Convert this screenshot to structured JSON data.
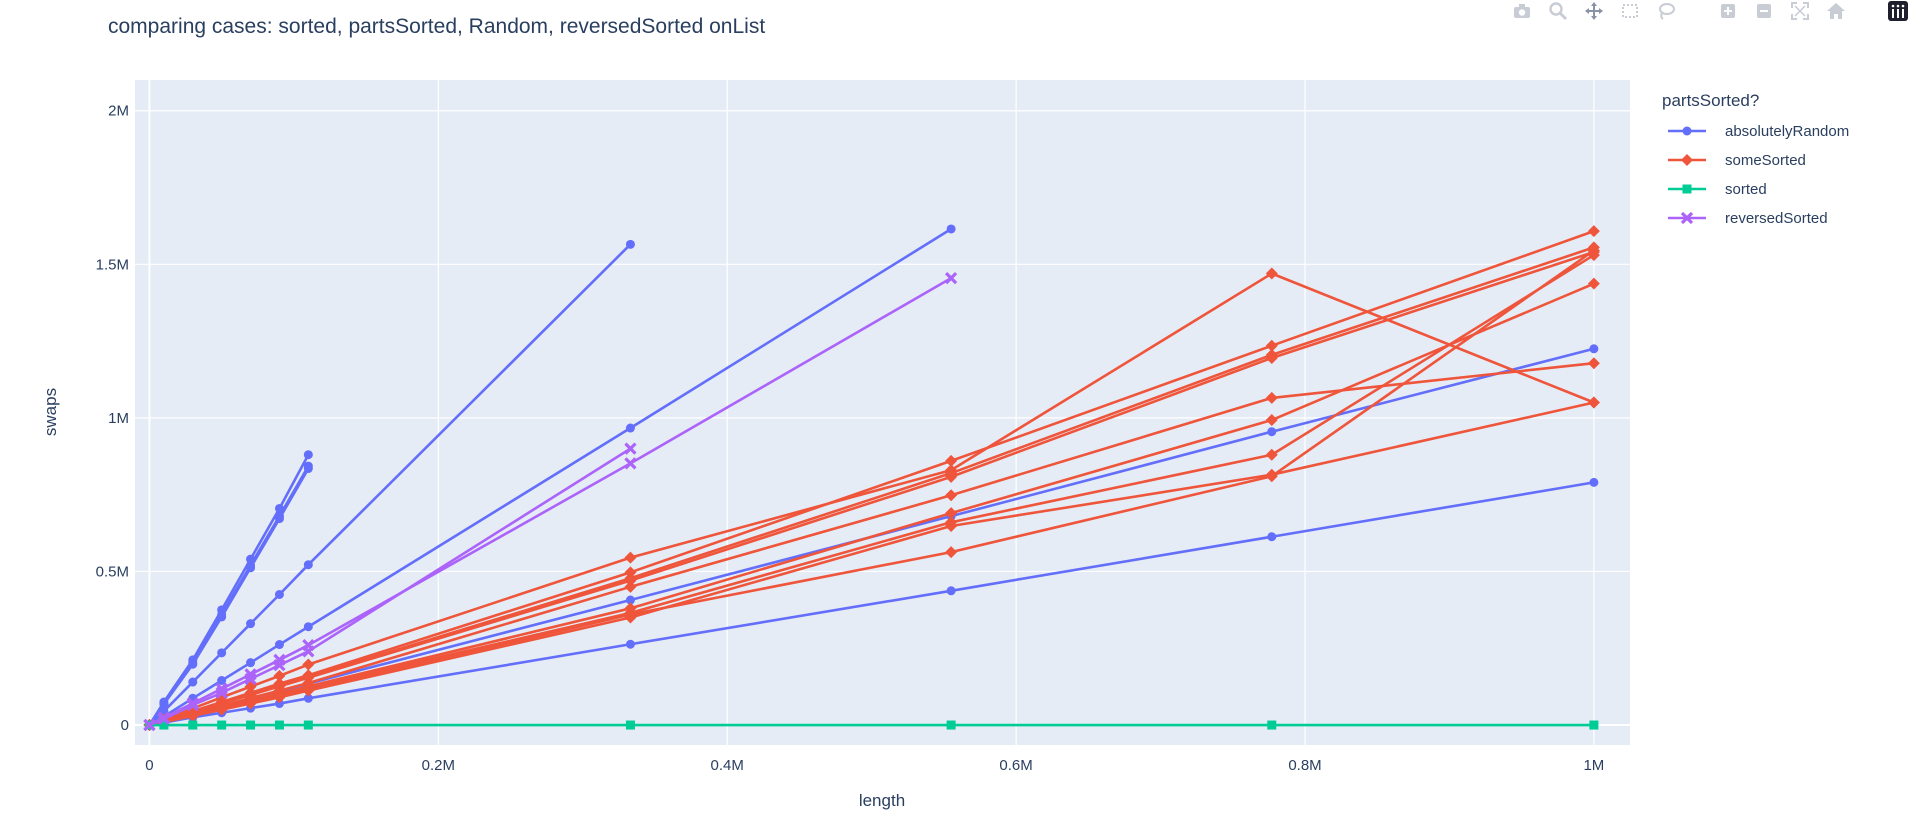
{
  "chart_data": {
    "type": "line",
    "title": "comparing cases: sorted, partsSorted, Random, reversedSorted onList",
    "xlabel": "length",
    "ylabel": "swaps",
    "xlim": [
      -10000,
      1025000
    ],
    "ylim": [
      -65000,
      2100000
    ],
    "x_ticks": [
      {
        "value": 0,
        "label": "0"
      },
      {
        "value": 200000,
        "label": "0.2M"
      },
      {
        "value": 400000,
        "label": "0.4M"
      },
      {
        "value": 600000,
        "label": "0.6M"
      },
      {
        "value": 800000,
        "label": "0.8M"
      },
      {
        "value": 1000000,
        "label": "1M"
      }
    ],
    "y_ticks": [
      {
        "value": 0,
        "label": "0"
      },
      {
        "value": 500000,
        "label": "0.5M"
      },
      {
        "value": 1000000,
        "label": "1M"
      },
      {
        "value": 1500000,
        "label": "1.5M"
      },
      {
        "value": 2000000,
        "label": "2M"
      }
    ],
    "grid": true,
    "legend": {
      "title": "partsSorted?",
      "position": "right",
      "entries": [
        {
          "name": "absolutelyRandom",
          "color": "#636efa",
          "marker": "circle"
        },
        {
          "name": "someSorted",
          "color": "#ef553b",
          "marker": "diamond"
        },
        {
          "name": "sorted",
          "color": "#00cc96",
          "marker": "square"
        },
        {
          "name": "reversedSorted",
          "color": "#ab63fa",
          "marker": "x"
        }
      ]
    },
    "series": [
      {
        "group": "absolutelyRandom",
        "x": [
          0,
          10000,
          30000,
          50000,
          70000,
          90000,
          110000
        ],
        "y": [
          0,
          75000,
          212000,
          375000,
          540000,
          705000,
          880000
        ]
      },
      {
        "group": "absolutelyRandom",
        "x": [
          0,
          10000,
          30000,
          50000,
          70000,
          90000,
          110000
        ],
        "y": [
          0,
          70000,
          203000,
          360000,
          520000,
          680000,
          843000
        ]
      },
      {
        "group": "absolutelyRandom",
        "x": [
          0,
          10000,
          30000,
          50000,
          70000,
          90000,
          110000
        ],
        "y": [
          0,
          68000,
          198000,
          352000,
          512000,
          672000,
          835000
        ]
      },
      {
        "group": "absolutelyRandom",
        "x": [
          0,
          10000,
          30000,
          50000,
          70000,
          90000,
          110000,
          333000
        ],
        "y": [
          0,
          45000,
          140000,
          235000,
          330000,
          425000,
          522000,
          1565000
        ]
      },
      {
        "group": "absolutelyRandom",
        "x": [
          0,
          10000,
          30000,
          50000,
          70000,
          90000,
          110000,
          333000,
          555000
        ],
        "y": [
          0,
          28000,
          87000,
          145000,
          203000,
          262000,
          320000,
          967000,
          1615000
        ]
      },
      {
        "group": "absolutelyRandom",
        "x": [
          0,
          10000,
          30000,
          50000,
          70000,
          90000,
          110000,
          333000,
          555000,
          777000,
          1000000
        ],
        "y": [
          0,
          12000,
          37000,
          62000,
          87000,
          110000,
          135000,
          407000,
          680000,
          955000,
          1225000
        ]
      },
      {
        "group": "absolutelyRandom",
        "x": [
          0,
          10000,
          30000,
          50000,
          70000,
          90000,
          110000,
          333000,
          555000,
          777000,
          1000000
        ],
        "y": [
          0,
          8000,
          25000,
          40000,
          55000,
          70000,
          87000,
          263000,
          437000,
          613000,
          790000
        ]
      },
      {
        "group": "someSorted",
        "x": [
          0,
          10000,
          30000,
          50000,
          70000,
          90000,
          110000,
          333000,
          555000,
          777000,
          1000000
        ],
        "y": [
          0,
          18000,
          54000,
          90000,
          125000,
          160000,
          197000,
          545000,
          830000,
          1470000,
          1050000
        ]
      },
      {
        "group": "someSorted",
        "x": [
          0,
          10000,
          30000,
          50000,
          70000,
          90000,
          110000,
          333000,
          555000,
          777000,
          1000000
        ],
        "y": [
          0,
          15000,
          45000,
          75000,
          105000,
          135000,
          162000,
          497000,
          860000,
          1235000,
          1608000
        ]
      },
      {
        "group": "someSorted",
        "x": [
          0,
          10000,
          30000,
          50000,
          70000,
          90000,
          110000,
          333000,
          555000,
          777000,
          1000000
        ],
        "y": [
          0,
          14000,
          43000,
          72000,
          100000,
          128000,
          157000,
          478000,
          820000,
          1205000,
          1555000
        ]
      },
      {
        "group": "someSorted",
        "x": [
          0,
          10000,
          30000,
          50000,
          70000,
          90000,
          110000,
          333000,
          555000,
          777000,
          1000000
        ],
        "y": [
          0,
          14000,
          42000,
          70000,
          98000,
          126000,
          154000,
          470000,
          808000,
          1195000,
          1540000
        ]
      },
      {
        "group": "someSorted",
        "x": [
          0,
          10000,
          30000,
          50000,
          70000,
          90000,
          110000,
          333000,
          555000,
          777000,
          1000000
        ],
        "y": [
          0,
          12000,
          37000,
          62000,
          88000,
          112000,
          137000,
          450000,
          748000,
          1065000,
          1178000
        ]
      },
      {
        "group": "someSorted",
        "x": [
          0,
          10000,
          30000,
          50000,
          70000,
          90000,
          110000,
          333000,
          555000,
          777000,
          1000000
        ],
        "y": [
          0,
          11000,
          34000,
          57000,
          80000,
          103000,
          126000,
          380000,
          690000,
          993000,
          1437000
        ]
      },
      {
        "group": "someSorted",
        "x": [
          0,
          10000,
          30000,
          50000,
          70000,
          90000,
          110000,
          333000,
          555000,
          777000,
          1000000
        ],
        "y": [
          0,
          11000,
          33000,
          55000,
          77000,
          100000,
          122000,
          365000,
          660000,
          880000,
          1530000
        ]
      },
      {
        "group": "someSorted",
        "x": [
          0,
          10000,
          30000,
          50000,
          70000,
          90000,
          110000,
          333000,
          555000,
          777000,
          1000000
        ],
        "y": [
          0,
          10000,
          31000,
          52000,
          73000,
          94000,
          115000,
          360000,
          563000,
          810000,
          1545000
        ]
      },
      {
        "group": "someSorted",
        "x": [
          0,
          10000,
          30000,
          50000,
          70000,
          90000,
          110000,
          333000,
          555000,
          777000,
          1000000
        ],
        "y": [
          0,
          10000,
          30000,
          50000,
          70000,
          90000,
          112000,
          350000,
          648000,
          815000,
          1050000
        ]
      },
      {
        "group": "sorted",
        "x": [
          0,
          10000,
          30000,
          50000,
          70000,
          90000,
          110000,
          333000,
          555000,
          777000,
          1000000
        ],
        "y": [
          0,
          0,
          0,
          0,
          0,
          0,
          0,
          0,
          0,
          0,
          0
        ]
      },
      {
        "group": "reversedSorted",
        "x": [
          0,
          10000,
          30000,
          50000,
          70000,
          90000,
          110000,
          333000,
          555000
        ],
        "y": [
          0,
          24000,
          71000,
          118000,
          165000,
          212000,
          260000,
          852000,
          1455000
        ]
      },
      {
        "group": "reversedSorted",
        "x": [
          0,
          10000,
          30000,
          50000,
          70000,
          90000,
          110000,
          333000
        ],
        "y": [
          0,
          20000,
          65000,
          105000,
          150000,
          195000,
          240000,
          900000
        ]
      }
    ]
  }
}
